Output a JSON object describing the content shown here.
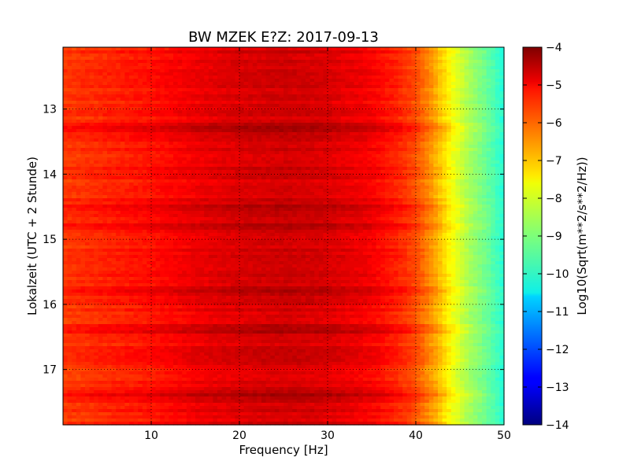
{
  "chart_data": {
    "type": "heatmap",
    "title": "BW MZEK E?Z: 2017-09-13",
    "xlabel": "Frequency [Hz]",
    "ylabel": "Lokalzeit (UTC + 2 Stunde)",
    "xlim": [
      0,
      50
    ],
    "ylim": [
      12.05,
      17.85
    ],
    "y_inverted": true,
    "xticks": [
      10,
      20,
      30,
      40,
      50
    ],
    "yticks": [
      13,
      14,
      15,
      16,
      17
    ],
    "grid": true,
    "colormap": "jet",
    "colorbar": {
      "label": "Log10(Sqrt(m**2/s**2/Hz))",
      "range": [
        -14,
        -4
      ],
      "ticks": [
        -4,
        -5,
        -6,
        -7,
        -8,
        -9,
        -10,
        -11,
        -12,
        -13,
        -14
      ]
    },
    "value_profile": {
      "frequency": [
        0,
        5,
        10,
        15,
        20,
        25,
        30,
        35,
        38,
        40,
        42,
        44,
        46,
        48,
        50
      ],
      "level": [
        -5.8,
        -5.6,
        -5.4,
        -5.1,
        -4.9,
        -4.8,
        -4.9,
        -5.2,
        -5.6,
        -6.0,
        -6.8,
        -7.8,
        -8.6,
        -9.2,
        -9.9
      ]
    },
    "strong_bands_hours": [
      13.3,
      14.5,
      14.8,
      15.8,
      16.4,
      17.4
    ]
  }
}
